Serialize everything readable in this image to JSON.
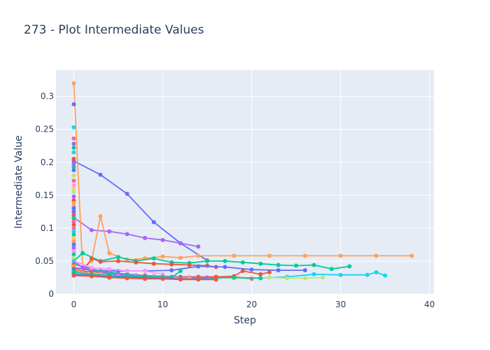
{
  "chart_data": {
    "type": "line",
    "title": "273 - Plot Intermediate Values",
    "xlabel": "Step",
    "ylabel": "Intermediate Value",
    "xlim": [
      -2,
      40.5
    ],
    "ylim": [
      0,
      0.34
    ],
    "x_ticks": [
      0,
      10,
      20,
      30,
      40
    ],
    "y_ticks": [
      0,
      0.05,
      0.1,
      0.15,
      0.2,
      0.25,
      0.3
    ],
    "x_tick_labels": [
      "0",
      "10",
      "20",
      "30",
      "40"
    ],
    "y_tick_labels": [
      "0",
      "0.05",
      "0.1",
      "0.15",
      "0.2",
      "0.25",
      "0.3"
    ],
    "grid": true,
    "legend": "none",
    "series": [
      {
        "color": "#636efa",
        "x": [
          0,
          3,
          6,
          9,
          12,
          15
        ],
        "y": [
          0.202,
          0.181,
          0.152,
          0.109,
          0.077,
          0.051
        ]
      },
      {
        "color": "#ab63fa",
        "x": [
          0,
          2,
          4,
          6,
          8,
          10,
          12,
          14
        ],
        "y": [
          0.116,
          0.097,
          0.095,
          0.091,
          0.085,
          0.082,
          0.077,
          0.072
        ]
      },
      {
        "color": "#ffa15a",
        "x": [
          0,
          1,
          2,
          3,
          4,
          6,
          8,
          10,
          12,
          14,
          18,
          22,
          26,
          30,
          34,
          38
        ],
        "y": [
          0.32,
          0.04,
          0.05,
          0.118,
          0.062,
          0.052,
          0.054,
          0.057,
          0.055,
          0.058,
          0.058,
          0.058,
          0.058,
          0.058,
          0.058,
          0.058
        ]
      },
      {
        "color": "#00cc96",
        "x": [
          0,
          1,
          3,
          5,
          7,
          9,
          11,
          13,
          15,
          17,
          19,
          21,
          23,
          25,
          27,
          29,
          31
        ],
        "y": [
          0.05,
          0.062,
          0.05,
          0.056,
          0.05,
          0.054,
          0.048,
          0.047,
          0.05,
          0.05,
          0.048,
          0.046,
          0.044,
          0.043,
          0.044,
          0.038,
          0.042
        ]
      },
      {
        "color": "#ef553b",
        "x": [
          0,
          1,
          2,
          3,
          5,
          7,
          9,
          11,
          13,
          15,
          16
        ],
        "y": [
          0.036,
          0.033,
          0.054,
          0.049,
          0.05,
          0.048,
          0.046,
          0.045,
          0.044,
          0.043,
          0.041
        ]
      },
      {
        "color": "#636efa",
        "x": [
          0,
          2,
          5,
          8,
          11,
          14,
          17,
          20,
          23,
          26
        ],
        "y": [
          0.04,
          0.036,
          0.035,
          0.035,
          0.036,
          0.042,
          0.041,
          0.037,
          0.036,
          0.036
        ]
      },
      {
        "color": "#19d3f3",
        "x": [
          0,
          3,
          6,
          9,
          12,
          15,
          18,
          21,
          24,
          27,
          30,
          33,
          34,
          35
        ],
        "y": [
          0.03,
          0.03,
          0.028,
          0.026,
          0.025,
          0.025,
          0.025,
          0.024,
          0.026,
          0.03,
          0.029,
          0.029,
          0.033,
          0.028
        ]
      },
      {
        "color": "#b6e880",
        "x": [
          0,
          2,
          4,
          6,
          8,
          10,
          12,
          14,
          16,
          18,
          20,
          22,
          24,
          26,
          28
        ],
        "y": [
          0.034,
          0.03,
          0.028,
          0.027,
          0.026,
          0.025,
          0.024,
          0.025,
          0.026,
          0.024,
          0.024,
          0.025,
          0.024,
          0.024,
          0.025
        ]
      },
      {
        "color": "#ff6692",
        "x": [
          0,
          1,
          2,
          4,
          6,
          8,
          10,
          12,
          14,
          16,
          18,
          20
        ],
        "y": [
          0.04,
          0.034,
          0.03,
          0.025,
          0.026,
          0.024,
          0.024,
          0.023,
          0.024,
          0.025,
          0.026,
          0.023
        ]
      },
      {
        "color": "#fecb52",
        "x": [
          0,
          2,
          4,
          6,
          8,
          10,
          12,
          14
        ],
        "y": [
          0.03,
          0.028,
          0.027,
          0.027,
          0.026,
          0.026,
          0.025,
          0.025
        ]
      },
      {
        "color": "#ef553b",
        "x": [
          0,
          2,
          4,
          6,
          8,
          10,
          12,
          14,
          16,
          18,
          19,
          21,
          22
        ],
        "y": [
          0.035,
          0.034,
          0.031,
          0.03,
          0.028,
          0.027,
          0.026,
          0.026,
          0.026,
          0.027,
          0.035,
          0.03,
          0.033
        ]
      },
      {
        "color": "#00cc96",
        "x": [
          0,
          3,
          6,
          9,
          12,
          15,
          18,
          21
        ],
        "y": [
          0.045,
          0.035,
          0.03,
          0.026,
          0.024,
          0.024,
          0.025,
          0.024
        ]
      },
      {
        "color": "#ab63fa",
        "x": [
          0,
          1,
          3,
          5,
          7,
          9,
          11,
          13,
          15
        ],
        "y": [
          0.05,
          0.04,
          0.033,
          0.03,
          0.028,
          0.027,
          0.026,
          0.025,
          0.025
        ]
      },
      {
        "color": "#ffa15a",
        "x": [
          0,
          1,
          3,
          5,
          7,
          9,
          11,
          13
        ],
        "y": [
          0.038,
          0.032,
          0.03,
          0.027,
          0.026,
          0.026,
          0.025,
          0.024
        ]
      },
      {
        "color": "#ff97ff",
        "x": [
          0,
          2,
          4,
          6,
          8,
          10
        ],
        "y": [
          0.05,
          0.04,
          0.038,
          0.035,
          0.035,
          0.03
        ]
      },
      {
        "color": "#00cc96",
        "x": [
          0,
          2,
          4,
          6,
          8,
          10,
          11,
          12
        ],
        "y": [
          0.033,
          0.03,
          0.028,
          0.027,
          0.027,
          0.026,
          0.025,
          0.035
        ]
      },
      {
        "color": "#636efa",
        "x": [
          0,
          4,
          8,
          12,
          16
        ],
        "y": [
          0.03,
          0.026,
          0.025,
          0.023,
          0.022
        ]
      },
      {
        "color": "#ef553b",
        "x": [
          0,
          2,
          4,
          6,
          8,
          10,
          12,
          14,
          16
        ],
        "y": [
          0.028,
          0.027,
          0.025,
          0.024,
          0.023,
          0.023,
          0.022,
          0.022,
          0.022
        ]
      }
    ],
    "initial_points": {
      "x": [
        0,
        0,
        0,
        0,
        0,
        0,
        0,
        0,
        0,
        0,
        0,
        0,
        0,
        0,
        0,
        0,
        0,
        0,
        0,
        0,
        0,
        0,
        0,
        0,
        0,
        0,
        0,
        0,
        0,
        0,
        0,
        0,
        0,
        0,
        0,
        0,
        0,
        0,
        0,
        0
      ],
      "y": [
        0.288,
        0.253,
        0.236,
        0.228,
        0.222,
        0.215,
        0.205,
        0.198,
        0.193,
        0.188,
        0.18,
        0.172,
        0.165,
        0.16,
        0.155,
        0.148,
        0.142,
        0.138,
        0.133,
        0.13,
        0.125,
        0.12,
        0.115,
        0.11,
        0.105,
        0.1,
        0.095,
        0.09,
        0.085,
        0.08,
        0.075,
        0.07,
        0.065,
        0.06,
        0.055,
        0.05,
        0.045,
        0.042,
        0.038,
        0.034
      ],
      "colors": [
        "#636efa",
        "#19d3f3",
        "#ff6692",
        "#ab63fa",
        "#00cc96",
        "#19d3f3",
        "#ef553b",
        "#ab63fa",
        "#00cc96",
        "#636efa",
        "#b6e880",
        "#ff6692",
        "#ff97ff",
        "#fecb52",
        "#b6e880",
        "#ab63fa",
        "#ef553b",
        "#ffa15a",
        "#ffa15a",
        "#636efa",
        "#636efa",
        "#ef553b",
        "#00cc96",
        "#ff6692",
        "#ef553b",
        "#ff6692",
        "#19d3f3",
        "#00cc96",
        "#fecb52",
        "#ffa15a",
        "#636efa",
        "#ab63fa",
        "#ff97ff",
        "#00cc96",
        "#b6e880",
        "#19d3f3",
        "#ef553b",
        "#ffa15a",
        "#636efa",
        "#00cc96"
      ]
    }
  }
}
